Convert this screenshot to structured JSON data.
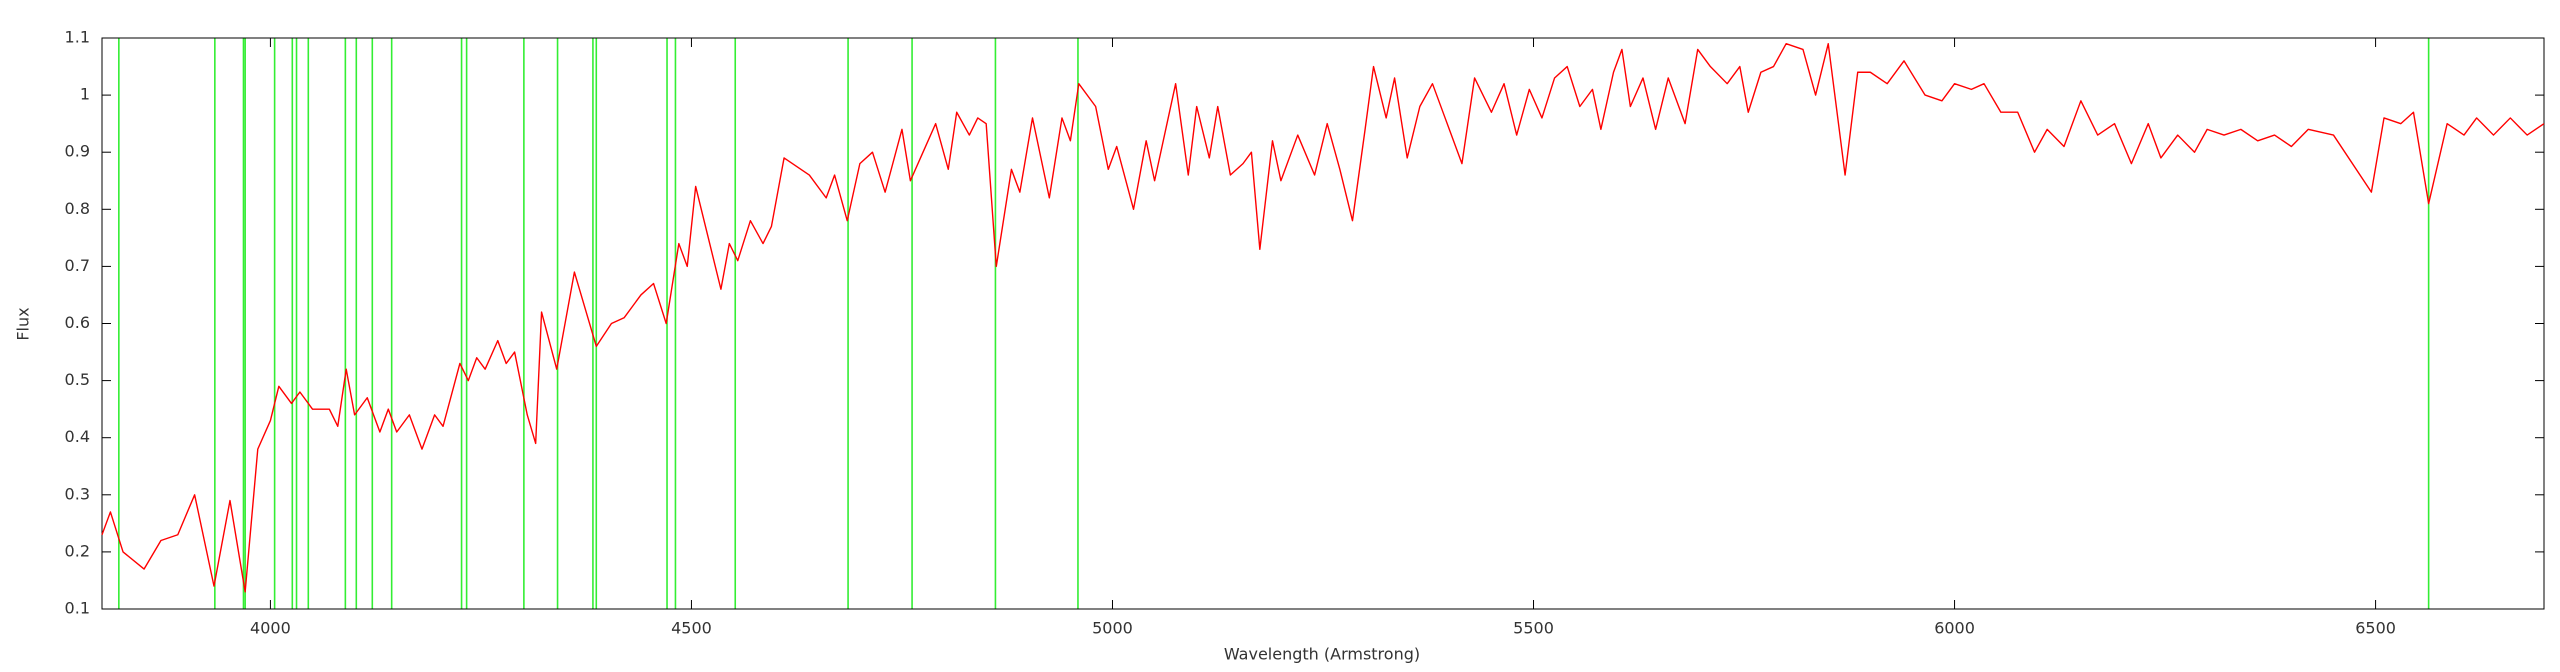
{
  "chart_data": {
    "type": "line",
    "xlabel": "Wavelength (Armstrong)",
    "ylabel": "Flux",
    "color": "#ff0000",
    "x": [
      3800,
      3810,
      3825,
      3850,
      3870,
      3890,
      3910,
      3933,
      3952,
      3970,
      3985,
      4000,
      4010,
      4025,
      4035,
      4050,
      4070,
      4080,
      4090,
      4100,
      4115,
      4130,
      4140,
      4150,
      4165,
      4180,
      4195,
      4205,
      4225,
      4235,
      4245,
      4255,
      4270,
      4280,
      4290,
      4305,
      4315,
      4322,
      4340,
      4361,
      4387,
      4405,
      4420,
      4440,
      4455,
      4470,
      4485,
      4495,
      4505,
      4520,
      4535,
      4545,
      4555,
      4570,
      4585,
      4595,
      4610,
      4640,
      4660,
      4670,
      4685,
      4700,
      4715,
      4730,
      4750,
      4760,
      4775,
      4790,
      4805,
      4815,
      4830,
      4840,
      4850,
      4862,
      4880,
      4890,
      4905,
      4925,
      4940,
      4950,
      4960,
      4980,
      4995,
      5005,
      5025,
      5040,
      5050,
      5075,
      5090,
      5100,
      5115,
      5125,
      5140,
      5155,
      5165,
      5175,
      5190,
      5200,
      5220,
      5240,
      5255,
      5270,
      5285,
      5300,
      5310,
      5325,
      5335,
      5350,
      5365,
      5380,
      5395,
      5415,
      5430,
      5450,
      5465,
      5480,
      5495,
      5510,
      5525,
      5540,
      5555,
      5570,
      5580,
      5595,
      5605,
      5615,
      5630,
      5645,
      5660,
      5680,
      5695,
      5710,
      5730,
      5745,
      5755,
      5770,
      5785,
      5800,
      5820,
      5835,
      5850,
      5870,
      5885,
      5900,
      5920,
      5940,
      5965,
      5985,
      6000,
      6020,
      6035,
      6055,
      6075,
      6095,
      6110,
      6130,
      6150,
      6170,
      6190,
      6210,
      6230,
      6245,
      6265,
      6285,
      6300,
      6320,
      6340,
      6360,
      6380,
      6400,
      6420,
      6450,
      6495,
      6510,
      6530,
      6545,
      6563,
      6585,
      6605,
      6620,
      6640,
      6660,
      6680,
      6700
    ],
    "values": [
      0.23,
      0.27,
      0.2,
      0.17,
      0.22,
      0.23,
      0.3,
      0.14,
      0.29,
      0.13,
      0.38,
      0.43,
      0.49,
      0.46,
      0.48,
      0.45,
      0.45,
      0.42,
      0.52,
      0.44,
      0.47,
      0.41,
      0.45,
      0.41,
      0.44,
      0.38,
      0.44,
      0.42,
      0.53,
      0.5,
      0.54,
      0.52,
      0.57,
      0.53,
      0.55,
      0.44,
      0.39,
      0.62,
      0.52,
      0.69,
      0.56,
      0.6,
      0.61,
      0.65,
      0.67,
      0.6,
      0.74,
      0.7,
      0.84,
      0.75,
      0.66,
      0.74,
      0.71,
      0.78,
      0.74,
      0.77,
      0.89,
      0.86,
      0.82,
      0.86,
      0.78,
      0.88,
      0.9,
      0.83,
      0.94,
      0.85,
      0.9,
      0.95,
      0.87,
      0.97,
      0.93,
      0.96,
      0.95,
      0.7,
      0.87,
      0.83,
      0.96,
      0.82,
      0.96,
      0.92,
      1.02,
      0.98,
      0.87,
      0.91,
      0.8,
      0.92,
      0.85,
      1.02,
      0.86,
      0.98,
      0.89,
      0.98,
      0.86,
      0.88,
      0.9,
      0.73,
      0.92,
      0.85,
      0.93,
      0.86,
      0.95,
      0.87,
      0.78,
      0.94,
      1.05,
      0.96,
      1.03,
      0.89,
      0.98,
      1.02,
      0.96,
      0.88,
      1.03,
      0.97,
      1.02,
      0.93,
      1.01,
      0.96,
      1.03,
      1.05,
      0.98,
      1.01,
      0.94,
      1.04,
      1.08,
      0.98,
      1.03,
      0.94,
      1.03,
      0.95,
      1.08,
      1.05,
      1.02,
      1.05,
      0.97,
      1.04,
      1.05,
      1.09,
      1.08,
      1.0,
      1.09,
      0.86,
      1.04,
      1.04,
      1.02,
      1.06,
      1.0,
      0.99,
      1.02,
      1.01,
      1.02,
      0.97,
      0.97,
      0.9,
      0.94,
      0.91,
      0.99,
      0.93,
      0.95,
      0.88,
      0.95,
      0.89,
      0.93,
      0.9,
      0.94,
      0.93,
      0.94,
      0.92,
      0.93,
      0.91,
      0.94,
      0.93,
      0.83,
      0.96,
      0.95,
      0.97,
      0.81,
      0.95,
      0.93,
      0.96,
      0.93,
      0.96,
      0.93,
      0.95
    ],
    "lines": {
      "color": "#33ee33",
      "x": [
        3820,
        3934,
        3968,
        3970,
        4005,
        4026,
        4031,
        4045,
        4089,
        4102,
        4121,
        4144,
        4227,
        4233,
        4301,
        4341,
        4383,
        4387,
        4471,
        4481,
        4552,
        4686,
        4762,
        4861,
        4959,
        6563
      ]
    },
    "xlim": [
      3800,
      6700
    ],
    "ylim": [
      0.1,
      1.1
    ],
    "xticks": [
      4000,
      4500,
      5000,
      5500,
      6000,
      6500
    ],
    "yticks": [
      0.1,
      0.2,
      0.3,
      0.4,
      0.5,
      0.6,
      0.7,
      0.8,
      0.9,
      1,
      1.1
    ]
  }
}
